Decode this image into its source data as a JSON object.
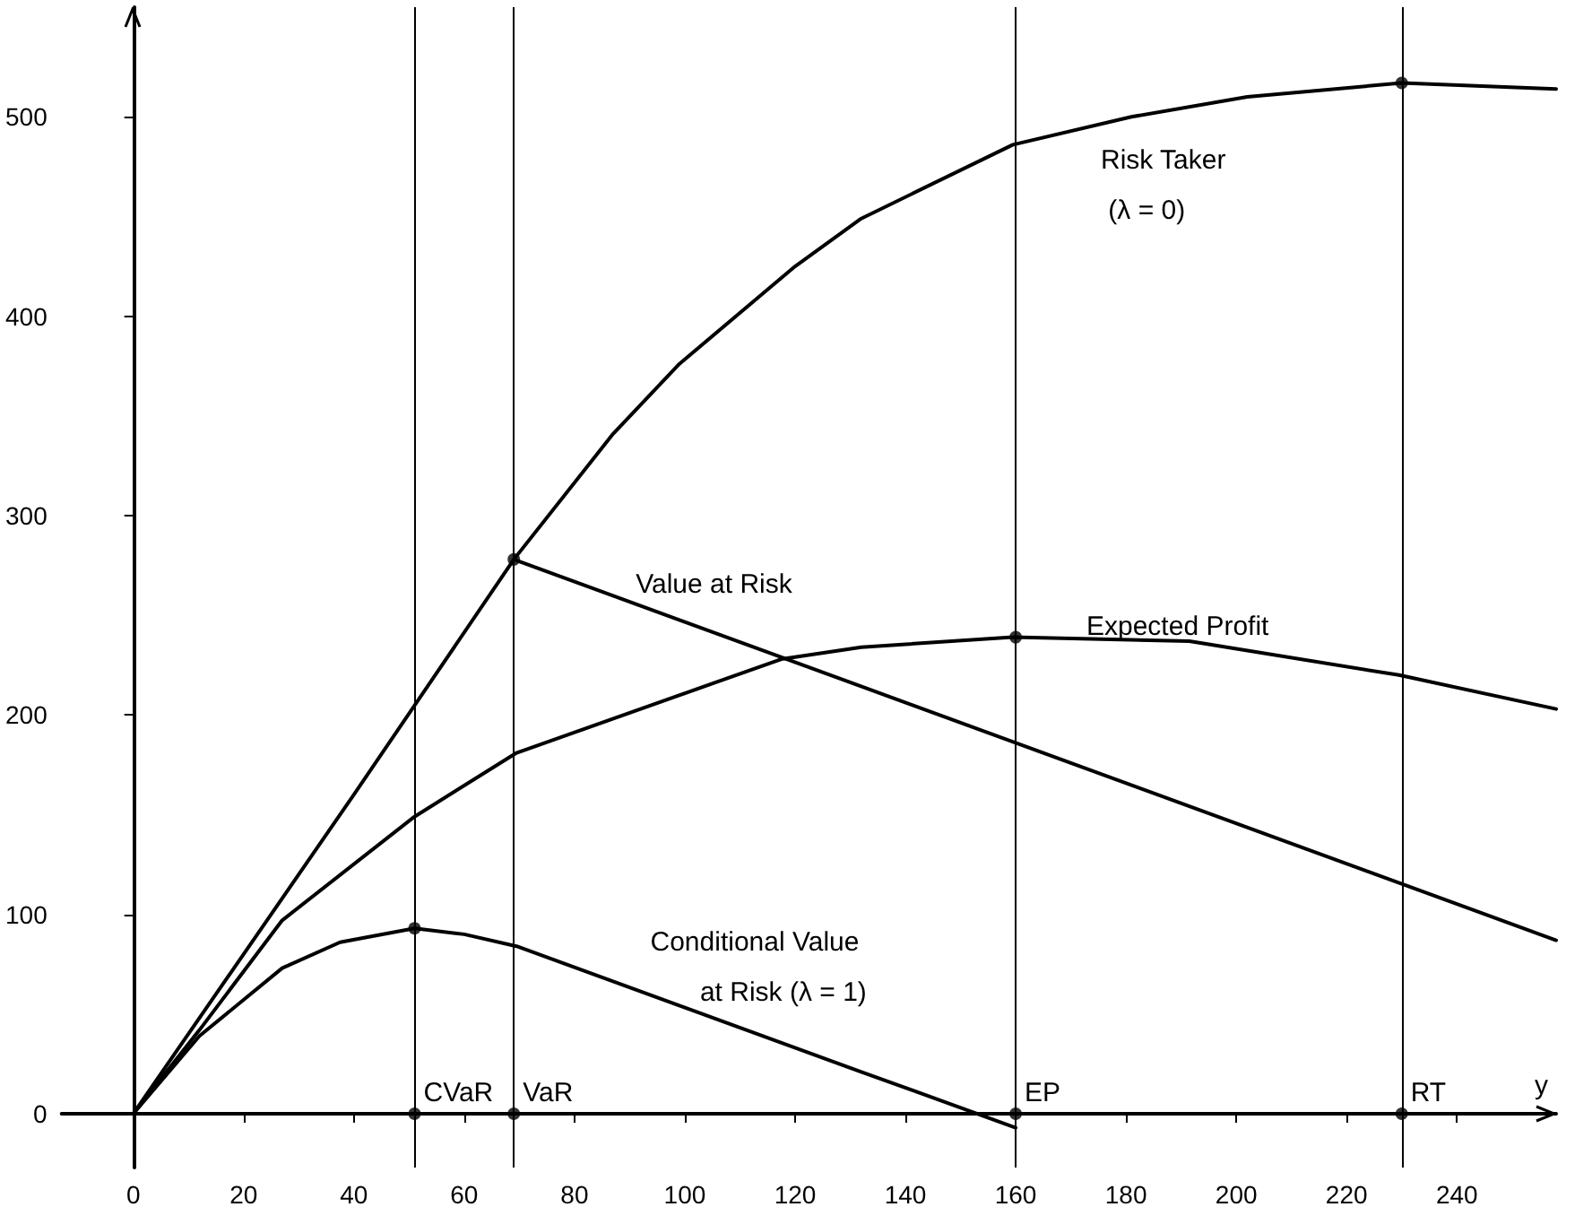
{
  "chart_data": {
    "type": "line",
    "xlabel": "y",
    "xlim": [
      -13,
      258
    ],
    "ylim": [
      -27,
      555
    ],
    "xticks": [
      0,
      20,
      40,
      60,
      80,
      100,
      120,
      140,
      160,
      180,
      200,
      220,
      240
    ],
    "yticks": [
      0,
      100,
      200,
      300,
      400,
      500
    ],
    "legend": false,
    "series": [
      {
        "name": "Risk Taker (λ = 0)",
        "color": "#000000",
        "x": [
          0,
          20,
          40,
          69,
          87,
          99,
          120,
          132,
          159.5,
          181,
          202,
          230,
          258
        ],
        "values": [
          0,
          80,
          160,
          278,
          341,
          376,
          425,
          449,
          486,
          500,
          510,
          517,
          514
        ]
      },
      {
        "name": "Value at Risk",
        "color": "#000000",
        "x": [
          69,
          258
        ],
        "values": [
          278,
          87
        ]
      },
      {
        "name": "Expected Profit",
        "color": "#000000",
        "x": [
          0,
          12,
          27,
          51,
          69.5,
          117.5,
          132,
          159.5,
          191.5,
          229.5,
          258
        ],
        "values": [
          0,
          42,
          97,
          149,
          181,
          228,
          234,
          239,
          237,
          220,
          203
        ]
      },
      {
        "name": "Conditional Value at Risk (λ = 1)",
        "color": "#000000",
        "x": [
          0,
          12,
          27,
          37.5,
          51,
          60,
          69.5,
          132,
          160
        ],
        "values": [
          0,
          39,
          73,
          86,
          93,
          90,
          84,
          21,
          -7
        ]
      },
      {
        "type": "scatter",
        "color": "#000000",
        "x": [
          51,
          69,
          160,
          230,
          51,
          69,
          160,
          230
        ],
        "values": [
          93,
          278,
          239,
          517,
          0,
          0,
          0,
          0
        ]
      }
    ],
    "ref_lines": [
      {
        "axis": "x",
        "value": 51,
        "label": "CVaR",
        "color": "#000000"
      },
      {
        "axis": "x",
        "value": 69,
        "label": "VaR",
        "color": "#000000"
      },
      {
        "axis": "x",
        "value": 160,
        "label": "EP",
        "color": "#000000"
      },
      {
        "axis": "x",
        "value": 230,
        "label": "RT",
        "color": "#000000"
      }
    ]
  }
}
